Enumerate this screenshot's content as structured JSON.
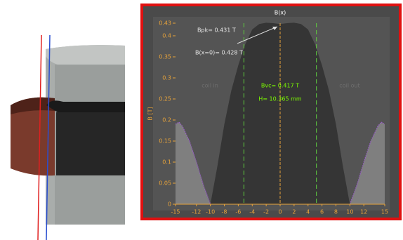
{
  "chart_data": {
    "type": "area",
    "title": "B(x)",
    "y_label": "B [T]",
    "series": [
      {
        "color": "#7f7f7f",
        "line_color": "#9b59d0",
        "x": [
          -15,
          -14.5,
          -14,
          -13,
          -12,
          -11,
          -10,
          null,
          10,
          11,
          12,
          13,
          14,
          14.5,
          15
        ],
        "values": [
          0.19,
          0.195,
          0.185,
          0.15,
          0.1,
          0.045,
          0,
          null,
          0,
          0.045,
          0.1,
          0.15,
          0.185,
          0.195,
          0.19
        ]
      },
      {
        "color": "#353535",
        "x": [
          -10,
          -9,
          -8,
          -7,
          -6,
          -5,
          -4,
          -3,
          -2,
          -1,
          0,
          1,
          2,
          3,
          4,
          5,
          6,
          7,
          8,
          9,
          10
        ],
        "values": [
          0,
          0.09,
          0.19,
          0.27,
          0.33,
          0.38,
          0.415,
          0.428,
          0.431,
          0.43,
          0.428,
          0.43,
          0.431,
          0.428,
          0.415,
          0.38,
          0.33,
          0.27,
          0.19,
          0.09,
          0
        ]
      }
    ],
    "xlim": [
      -15,
      15
    ],
    "ylim": [
      0,
      0.43
    ],
    "xticks": [
      -15,
      -12,
      -10,
      -8,
      -6,
      -4,
      -2,
      0,
      2,
      4,
      6,
      8,
      10,
      12,
      15
    ],
    "yticks": [
      0,
      0.05,
      0.1,
      0.15,
      0.2,
      0.25,
      0.3,
      0.35,
      0.4,
      0.43
    ],
    "vlines": [
      -5.2,
      5.2
    ],
    "vline_color": "#5fcf3f",
    "center_line": 0,
    "center_line_color": "#e8a33a",
    "tick_color": "#e8a33a",
    "annotations": [
      "Bpk= 0.431 T",
      "B(x=0)= 0.428 T",
      "coil in",
      "coil out",
      "Bvc= 0.417 T",
      "H= 10.365 mm"
    ]
  }
}
